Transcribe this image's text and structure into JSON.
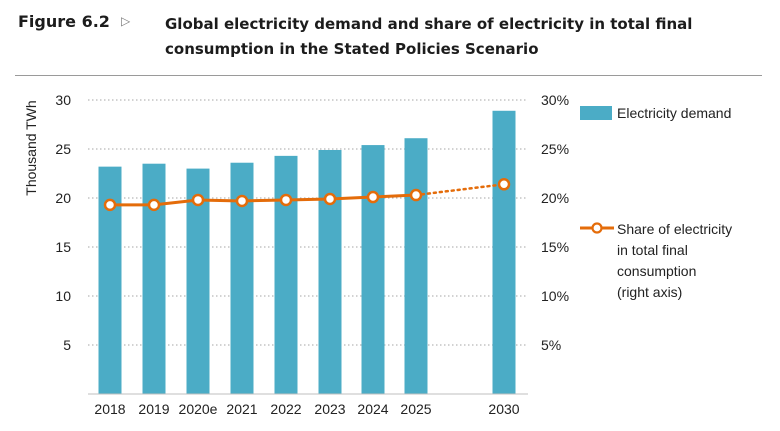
{
  "figure": {
    "label": "Figure 6.2",
    "arrow": "▷",
    "title": "Global electricity demand and share of electricity in total final consumption in the Stated Policies Scenario"
  },
  "colors": {
    "bar": "#4bacc6",
    "line": "#e46c0a",
    "grid": "#a6a6a6"
  },
  "chart_data": {
    "type": "bar",
    "categories": [
      "2018",
      "2019",
      "2020e",
      "2021",
      "2022",
      "2023",
      "2024",
      "2025",
      "2030"
    ],
    "series": [
      {
        "name": "Electricity demand",
        "type": "bar",
        "axis": "left",
        "values": [
          23.2,
          23.5,
          23.0,
          23.6,
          24.3,
          24.9,
          25.4,
          26.1,
          28.9
        ]
      },
      {
        "name": "Share of electricity in total final consumption (right axis)",
        "type": "line",
        "axis": "right",
        "values": [
          19.3,
          19.3,
          19.8,
          19.7,
          19.8,
          19.9,
          20.1,
          20.3,
          21.4
        ],
        "dotted_after": "2025"
      }
    ],
    "ylabel": "Thousand TWh",
    "ylim": [
      0,
      30
    ],
    "y_ticks": [
      5,
      10,
      15,
      20,
      25,
      30
    ],
    "y2lim": [
      0,
      30
    ],
    "y2_ticks": [
      "5%",
      "10%",
      "15%",
      "20%",
      "25%",
      "30%"
    ],
    "grid": "horizontal dotted",
    "legend_position": "right",
    "legend": [
      {
        "key": "bar",
        "lines": [
          "Electricity demand"
        ]
      },
      {
        "key": "line",
        "lines": [
          "Share of electricity",
          "in total final",
          "consumption",
          "(right axis)"
        ]
      }
    ]
  }
}
